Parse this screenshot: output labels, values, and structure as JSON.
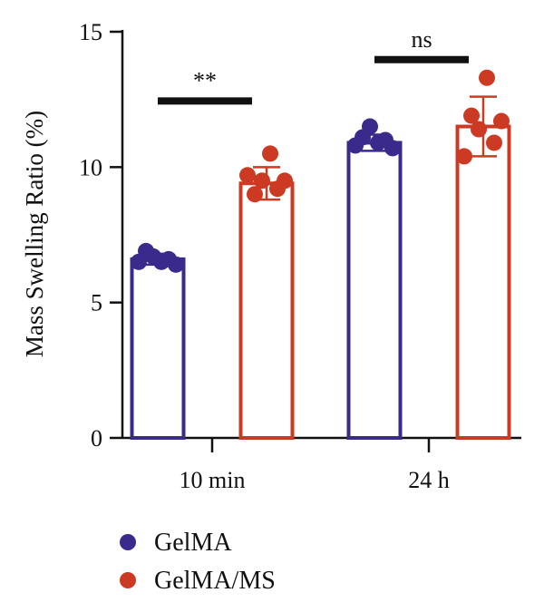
{
  "chart_data": {
    "type": "bar",
    "ylabel": "Mass Swelling Ratio (%)",
    "xlabel": "",
    "ylim": [
      0,
      15
    ],
    "yticks": [
      0,
      5,
      10,
      15
    ],
    "categories": [
      "10 min",
      "24 h"
    ],
    "legend_position": "bottom-left",
    "series": [
      {
        "name": "GelMA",
        "color": "#3a2a8c",
        "values": [
          6.6,
          10.9
        ],
        "error": [
          0.2,
          0.3
        ],
        "points": [
          [
            6.5,
            6.9,
            6.7,
            6.5,
            6.6,
            6.4
          ],
          [
            10.8,
            11.1,
            11.5,
            10.9,
            11.0,
            10.7
          ]
        ]
      },
      {
        "name": "GelMA/MS",
        "color": "#cc3a24",
        "values": [
          9.4,
          11.5
        ],
        "error": [
          0.6,
          1.1
        ],
        "points": [
          [
            9.7,
            9.0,
            9.5,
            10.5,
            9.2,
            9.5
          ],
          [
            10.4,
            11.9,
            11.4,
            13.3,
            10.9,
            11.7
          ]
        ]
      }
    ],
    "significance": [
      {
        "category": "10 min",
        "label": "**"
      },
      {
        "category": "24 h",
        "label": "ns"
      }
    ]
  }
}
